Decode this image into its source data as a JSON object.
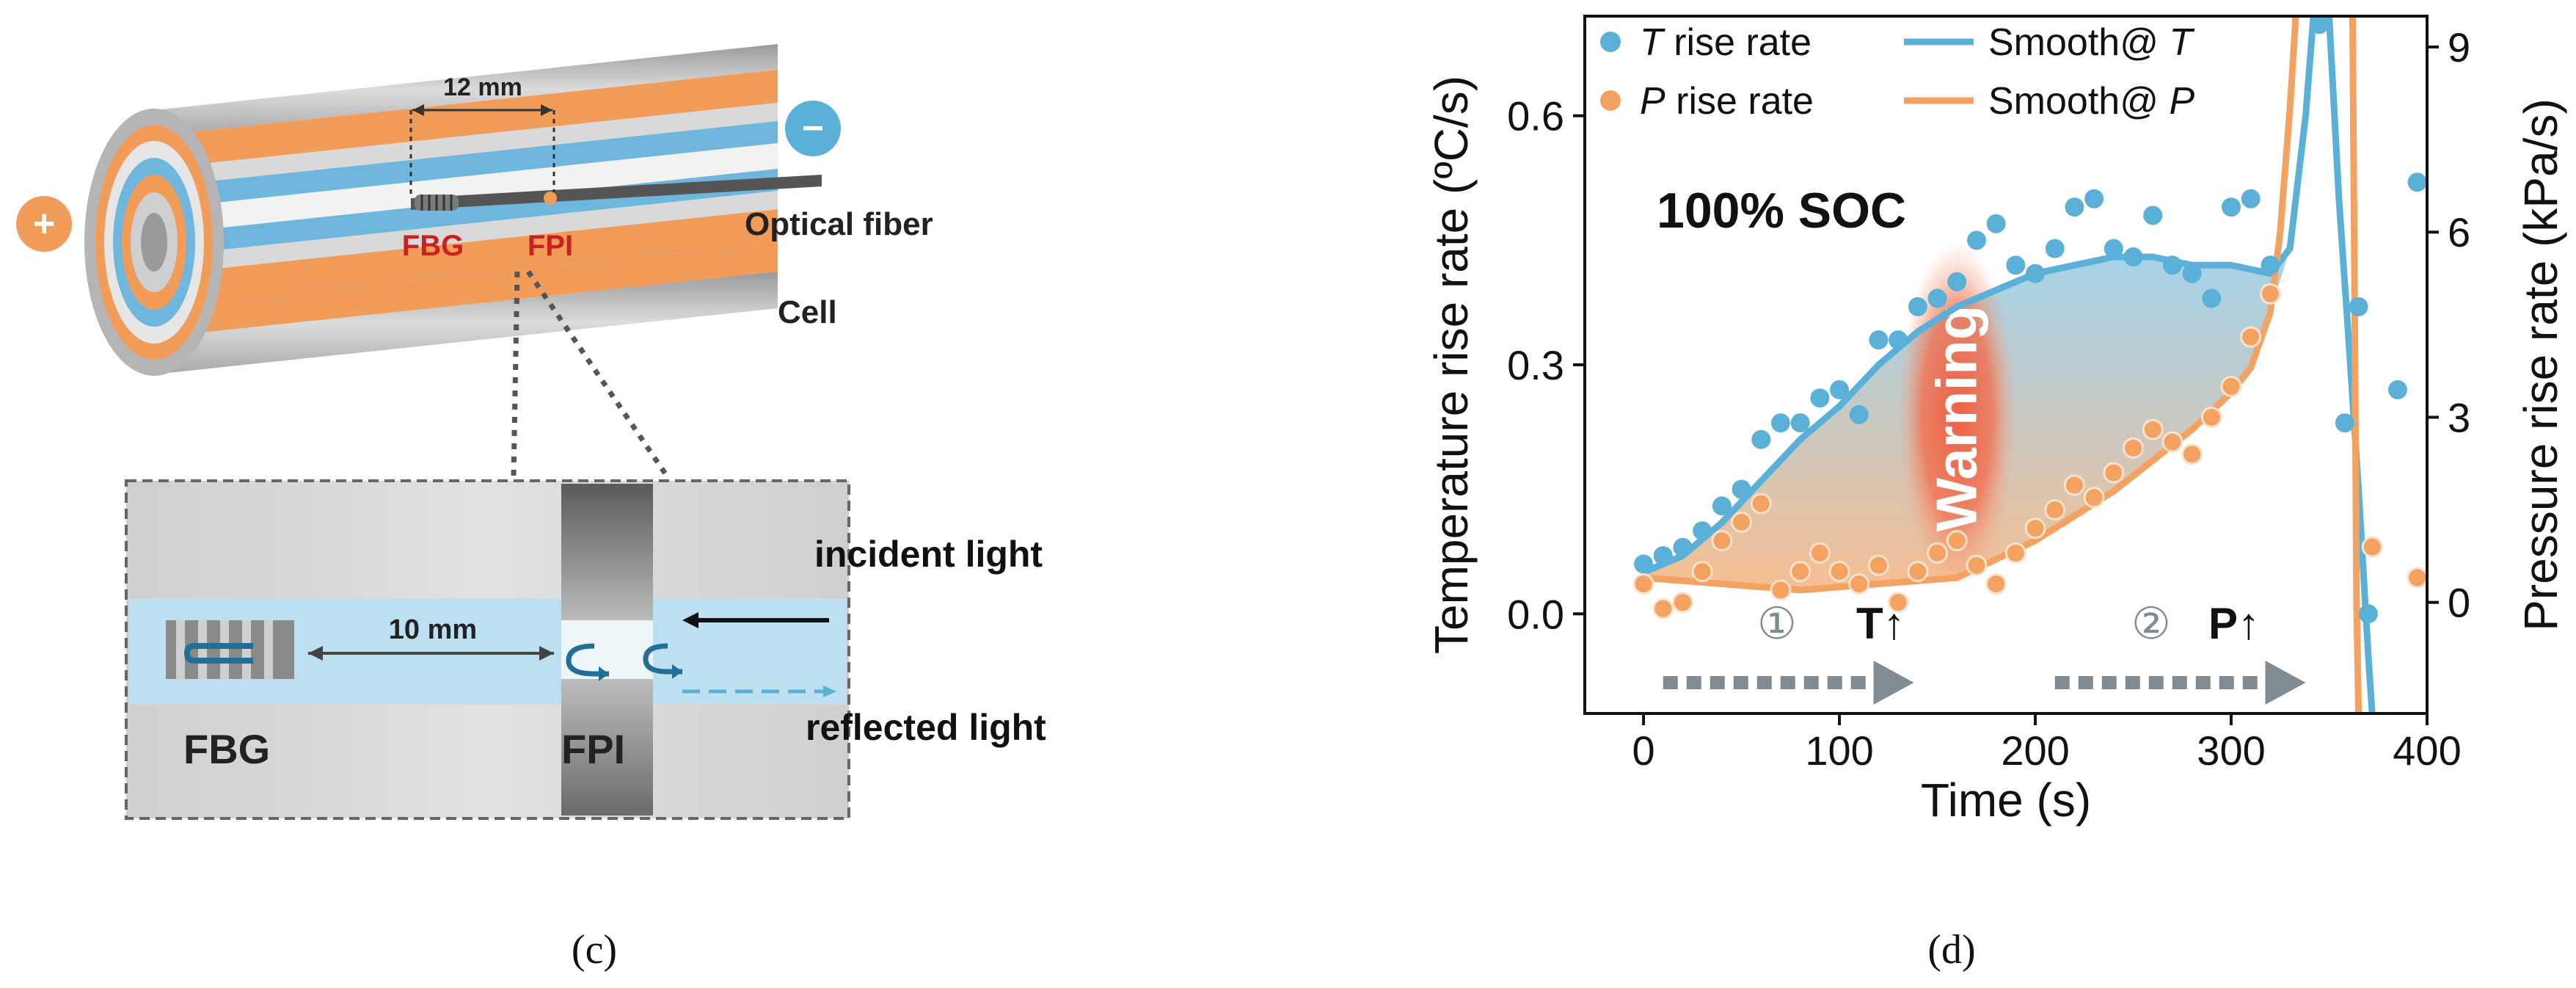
{
  "panel_c": {
    "caption": "(c)",
    "dimension_top": "12 mm",
    "dimension_bottom": "10 mm",
    "label_fbg": "FBG",
    "label_fpi": "FPI",
    "label_optical_fiber": "Optical fiber",
    "label_cell": "Cell",
    "label_plus": "+",
    "label_minus": "−",
    "label_incident": "incident light",
    "label_reflected": "reflected light",
    "label_fbg_zoom": "FBG",
    "label_fpi_zoom": "FPI"
  },
  "panel_d": {
    "caption": "(d)",
    "annotation_soc": "100% SOC",
    "annotation_warning": "Warning",
    "stage1_num": "①",
    "stage1_text": "T↑",
    "stage2_num": "②",
    "stage2_text": "P↑"
  },
  "colors": {
    "temperature": "#5bb0d8",
    "pressure": "#f4a261",
    "warning": "#f05a3c",
    "arrow": "#7f8c93"
  },
  "chart_data": {
    "type": "scatter",
    "title": "",
    "xlabel": "Time (s)",
    "ylabel": "Temperature rise rate (ºC/s)",
    "y2label": "Pressure rise rate (kPa/s)",
    "xlim": [
      -30,
      400
    ],
    "ylim": [
      -0.12,
      0.72
    ],
    "y2lim": [
      -1.8,
      9.5
    ],
    "xticks": [
      0,
      100,
      200,
      300,
      400
    ],
    "yticks": [
      0.0,
      0.3,
      0.6
    ],
    "ytick_labels": [
      "0.0",
      "0.3",
      "0.6"
    ],
    "y2ticks": [
      0,
      3,
      6,
      9
    ],
    "legend": {
      "placement": "top",
      "entries": [
        {
          "italic": "T",
          "text": " rise rate",
          "kind": "scatter",
          "series": "T"
        },
        {
          "italic": "P",
          "text": " rise rate",
          "kind": "scatter",
          "series": "P"
        },
        {
          "italic": "",
          "text": "Smooth@ ",
          "suffix": "T",
          "kind": "line",
          "series": "T"
        },
        {
          "italic": "",
          "text": "Smooth@ ",
          "suffix": "P",
          "kind": "line",
          "series": "P"
        }
      ]
    },
    "series": [
      {
        "name": "T rise rate",
        "axis": "left",
        "points": [
          [
            0,
            0.06
          ],
          [
            10,
            0.07
          ],
          [
            20,
            0.08
          ],
          [
            30,
            0.1
          ],
          [
            40,
            0.13
          ],
          [
            50,
            0.15
          ],
          [
            60,
            0.21
          ],
          [
            70,
            0.23
          ],
          [
            80,
            0.23
          ],
          [
            90,
            0.26
          ],
          [
            100,
            0.27
          ],
          [
            110,
            0.24
          ],
          [
            120,
            0.33
          ],
          [
            130,
            0.33
          ],
          [
            140,
            0.37
          ],
          [
            150,
            0.38
          ],
          [
            160,
            0.4
          ],
          [
            170,
            0.45
          ],
          [
            180,
            0.47
          ],
          [
            190,
            0.42
          ],
          [
            200,
            0.41
          ],
          [
            210,
            0.44
          ],
          [
            220,
            0.49
          ],
          [
            230,
            0.5
          ],
          [
            240,
            0.44
          ],
          [
            250,
            0.43
          ],
          [
            260,
            0.48
          ],
          [
            270,
            0.42
          ],
          [
            280,
            0.41
          ],
          [
            290,
            0.38
          ],
          [
            300,
            0.49
          ],
          [
            310,
            0.5
          ],
          [
            320,
            0.42
          ],
          [
            345,
            0.71
          ],
          [
            358,
            0.23
          ],
          [
            365,
            0.37
          ],
          [
            370,
            0.0
          ],
          [
            385,
            0.27
          ],
          [
            395,
            0.52
          ]
        ]
      },
      {
        "name": "P rise rate",
        "axis": "right",
        "points": [
          [
            0,
            0.3
          ],
          [
            10,
            -0.1
          ],
          [
            20,
            0.0
          ],
          [
            30,
            0.5
          ],
          [
            40,
            1.0
          ],
          [
            50,
            1.3
          ],
          [
            60,
            1.6
          ],
          [
            70,
            0.2
          ],
          [
            80,
            0.5
          ],
          [
            90,
            0.8
          ],
          [
            100,
            0.5
          ],
          [
            110,
            0.3
          ],
          [
            120,
            0.6
          ],
          [
            130,
            0.0
          ],
          [
            140,
            0.5
          ],
          [
            150,
            0.8
          ],
          [
            160,
            1.0
          ],
          [
            170,
            0.6
          ],
          [
            180,
            0.3
          ],
          [
            190,
            0.8
          ],
          [
            200,
            1.2
          ],
          [
            210,
            1.5
          ],
          [
            220,
            1.9
          ],
          [
            230,
            1.7
          ],
          [
            240,
            2.1
          ],
          [
            250,
            2.5
          ],
          [
            260,
            2.8
          ],
          [
            270,
            2.6
          ],
          [
            280,
            2.4
          ],
          [
            290,
            3.0
          ],
          [
            300,
            3.5
          ],
          [
            310,
            4.3
          ],
          [
            320,
            5.0
          ],
          [
            372,
            0.9
          ],
          [
            395,
            0.4
          ]
        ]
      },
      {
        "name": "Smooth@ T",
        "axis": "left",
        "type": "line",
        "points": [
          [
            0,
            0.05
          ],
          [
            20,
            0.07
          ],
          [
            40,
            0.11
          ],
          [
            60,
            0.16
          ],
          [
            80,
            0.21
          ],
          [
            100,
            0.25
          ],
          [
            120,
            0.3
          ],
          [
            140,
            0.34
          ],
          [
            160,
            0.37
          ],
          [
            180,
            0.39
          ],
          [
            200,
            0.41
          ],
          [
            220,
            0.42
          ],
          [
            240,
            0.43
          ],
          [
            260,
            0.43
          ],
          [
            280,
            0.42
          ],
          [
            300,
            0.42
          ],
          [
            320,
            0.41
          ],
          [
            330,
            0.44
          ],
          [
            338,
            0.6
          ],
          [
            342,
            0.72
          ]
        ]
      },
      {
        "name": "Smooth@ P",
        "axis": "right",
        "type": "line",
        "points": [
          [
            0,
            0.4
          ],
          [
            40,
            0.3
          ],
          [
            80,
            0.2
          ],
          [
            120,
            0.3
          ],
          [
            160,
            0.4
          ],
          [
            200,
            1.0
          ],
          [
            240,
            1.8
          ],
          [
            280,
            2.8
          ],
          [
            300,
            3.4
          ],
          [
            310,
            3.8
          ],
          [
            320,
            4.7
          ],
          [
            325,
            6.0
          ],
          [
            330,
            8.0
          ],
          [
            333,
            9.5
          ]
        ]
      },
      {
        "name": "T post-peak line",
        "axis": "left",
        "type": "line",
        "points": [
          [
            350,
            0.72
          ],
          [
            355,
            0.5
          ],
          [
            360,
            0.33
          ],
          [
            365,
            0.15
          ],
          [
            370,
            -0.05
          ],
          [
            372,
            -0.12
          ]
        ]
      },
      {
        "name": "P post-peak line",
        "axis": "right",
        "type": "line",
        "points": [
          [
            362,
            9.5
          ],
          [
            363,
            5.0
          ],
          [
            364,
            0.0
          ],
          [
            365,
            -1.8
          ]
        ]
      }
    ]
  }
}
